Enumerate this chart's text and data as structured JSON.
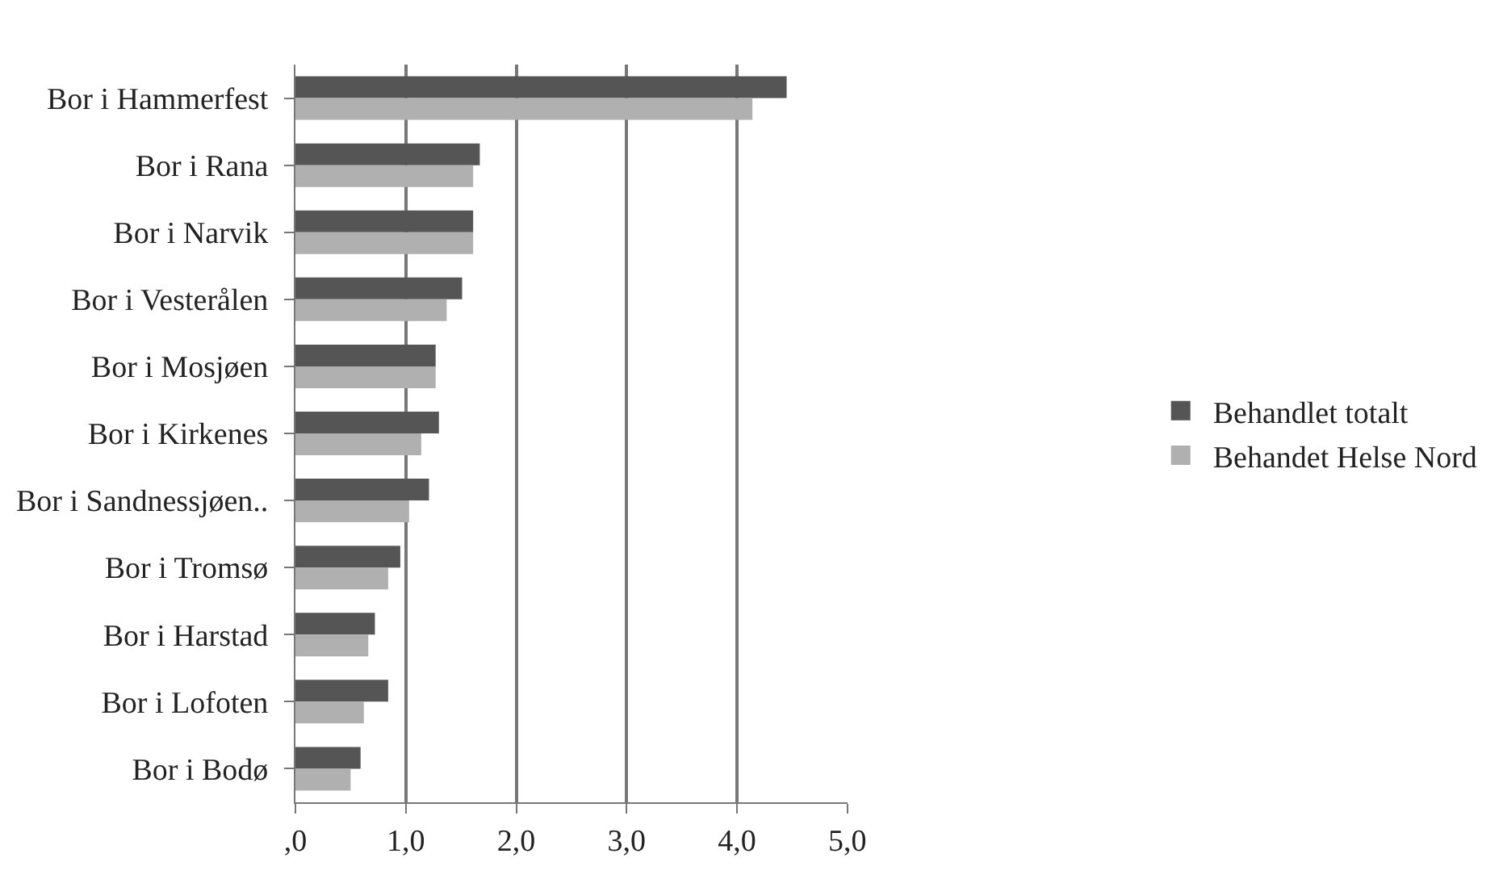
{
  "chart_data": {
    "type": "bar",
    "orientation": "horizontal",
    "categories": [
      "Bor i Hammerfest",
      "Bor i Rana",
      "Bor i Narvik",
      "Bor i Vesterålen",
      "Bor i Mosjøen",
      "Bor i Kirkenes",
      "Bor i Sandnessjøen..",
      "Bor i Tromsø",
      "Bor i Harstad",
      "Bor i Lofoten",
      "Bor i Bodø"
    ],
    "series": [
      {
        "name": "Behandlet totalt",
        "color": "#555555",
        "values": [
          4.45,
          1.67,
          1.61,
          1.51,
          1.27,
          1.3,
          1.21,
          0.95,
          0.72,
          0.84,
          0.59
        ]
      },
      {
        "name": "Behandet Helse Nord",
        "color": "#b0b0b0",
        "values": [
          4.14,
          1.61,
          1.61,
          1.37,
          1.27,
          1.14,
          1.03,
          0.84,
          0.66,
          0.62,
          0.5
        ]
      }
    ],
    "xlim": [
      0,
      5
    ],
    "xticks": [
      {
        "value": 0,
        "label": ",0"
      },
      {
        "value": 1,
        "label": "1,0"
      },
      {
        "value": 2,
        "label": "2,0"
      },
      {
        "value": 3,
        "label": "3,0"
      },
      {
        "value": 4,
        "label": "4,0"
      },
      {
        "value": 5,
        "label": "5,0"
      }
    ],
    "grid": "x",
    "legend": "right"
  }
}
